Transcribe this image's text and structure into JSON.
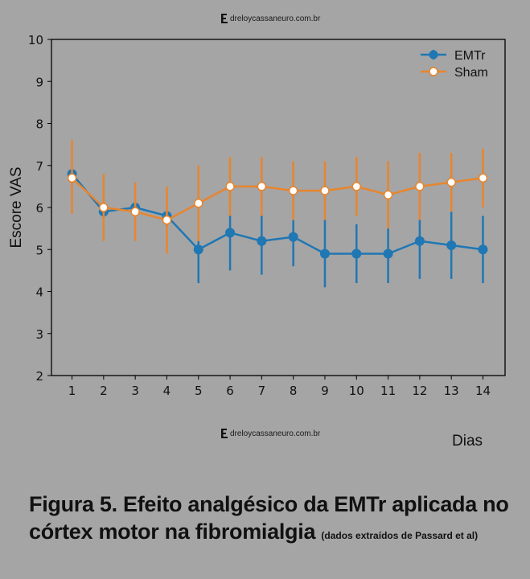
{
  "watermark": {
    "text": "dreloycassaneuro.com.br",
    "icon": "e-logo-icon"
  },
  "caption": {
    "main_line1": "Figura 5. Efeito analgésico da EMTr aplicada no",
    "main_line2": "córtex motor na fibromialgia",
    "note": "(dados extraídos de Passard et al)"
  },
  "chart_data": {
    "type": "line",
    "title": "",
    "xlabel": "Dias",
    "ylabel": "Escore VAS",
    "x": [
      1,
      2,
      3,
      4,
      5,
      6,
      7,
      8,
      9,
      10,
      11,
      12,
      13,
      14
    ],
    "xticks": [
      "1",
      "2",
      "3",
      "4",
      "5",
      "6",
      "7",
      "8",
      "9",
      "10",
      "11",
      "12",
      "13",
      "14"
    ],
    "yticks": [
      "2",
      "3",
      "4",
      "5",
      "6",
      "7",
      "8",
      "9",
      "10"
    ],
    "xlim": [
      0.35,
      14.7
    ],
    "ylim": [
      2,
      10
    ],
    "grid": false,
    "legend_position": "top-right",
    "series": [
      {
        "name": "EMTr",
        "color": "#1f77b4",
        "marker": "filled-circle",
        "values": [
          6.8,
          5.9,
          6.0,
          5.8,
          5.0,
          5.4,
          5.2,
          5.3,
          4.9,
          4.9,
          4.9,
          5.2,
          5.1,
          5.0
        ],
        "err_low": [
          6.8,
          5.9,
          6.0,
          5.8,
          4.2,
          4.5,
          4.4,
          4.6,
          4.1,
          4.2,
          4.2,
          4.3,
          4.3,
          4.2
        ],
        "err_high": [
          6.8,
          5.9,
          6.0,
          5.8,
          5.2,
          5.8,
          5.8,
          5.7,
          5.7,
          5.6,
          5.5,
          5.7,
          5.9,
          5.8
        ]
      },
      {
        "name": "Sham",
        "color": "#e8852e",
        "marker": "white-circle",
        "values": [
          6.7,
          6.0,
          5.9,
          5.7,
          6.1,
          6.5,
          6.5,
          6.4,
          6.4,
          6.5,
          6.3,
          6.5,
          6.6,
          6.7
        ],
        "err_low": [
          5.85,
          5.2,
          5.2,
          4.9,
          5.2,
          5.8,
          5.8,
          5.7,
          5.7,
          5.8,
          5.5,
          5.7,
          5.9,
          6.0
        ],
        "err_high": [
          7.6,
          6.8,
          6.6,
          6.5,
          7.0,
          7.2,
          7.2,
          7.1,
          7.1,
          7.2,
          7.1,
          7.3,
          7.3,
          7.4
        ]
      }
    ]
  }
}
